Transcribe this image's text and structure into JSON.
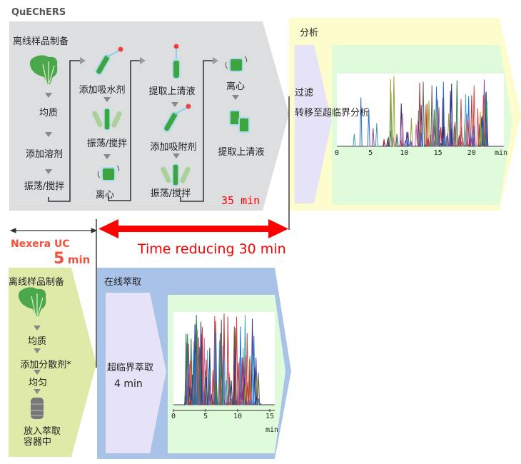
{
  "quechers": {
    "title": "QuEChERS",
    "offline_prep": "离线样品制备",
    "col1": [
      "均质",
      "添加溶剂",
      "振荡/搅拌"
    ],
    "col2": [
      "添加吸水剂",
      "振荡/搅拌",
      "离心"
    ],
    "col3": [
      "提取上清液",
      "添加吸附剂",
      "振荡/搅拌"
    ],
    "col4": [
      "离心",
      "提取上清液"
    ],
    "time": "35 min"
  },
  "analysis": {
    "title": "分析",
    "filter": "过滤",
    "transfer": "转移至超临界分析",
    "ticks": [
      "0",
      "5",
      "10",
      "15",
      "20"
    ],
    "unit": "min"
  },
  "comparison": {
    "reduction": "Time reducing 30 min",
    "nexera": "Nexera UC",
    "nexera_time_value": "5",
    "nexera_time_unit": "min"
  },
  "nexera": {
    "offline_prep": "离线样品制备",
    "steps": [
      "均质",
      "添加分散剂*",
      "均匀"
    ],
    "last_step": [
      "放入萃取",
      "容器中"
    ],
    "online_title": "在线萃取",
    "sfe": "超临界萃取",
    "sfe_time": "4 min",
    "ticks": [
      "0",
      "5",
      "10",
      "15"
    ],
    "unit": "min"
  },
  "colors": {
    "quechers_bg": "#dcdedf",
    "analysis_bg": "#fdfccc",
    "lavender": "#e6e2f7",
    "green_panel": "#e0fbdb",
    "blue_bg": "#a9c2e8",
    "nexera_bg": "#dfe9a8",
    "red": "#ff0000",
    "nexera_red": "#f0503c"
  }
}
